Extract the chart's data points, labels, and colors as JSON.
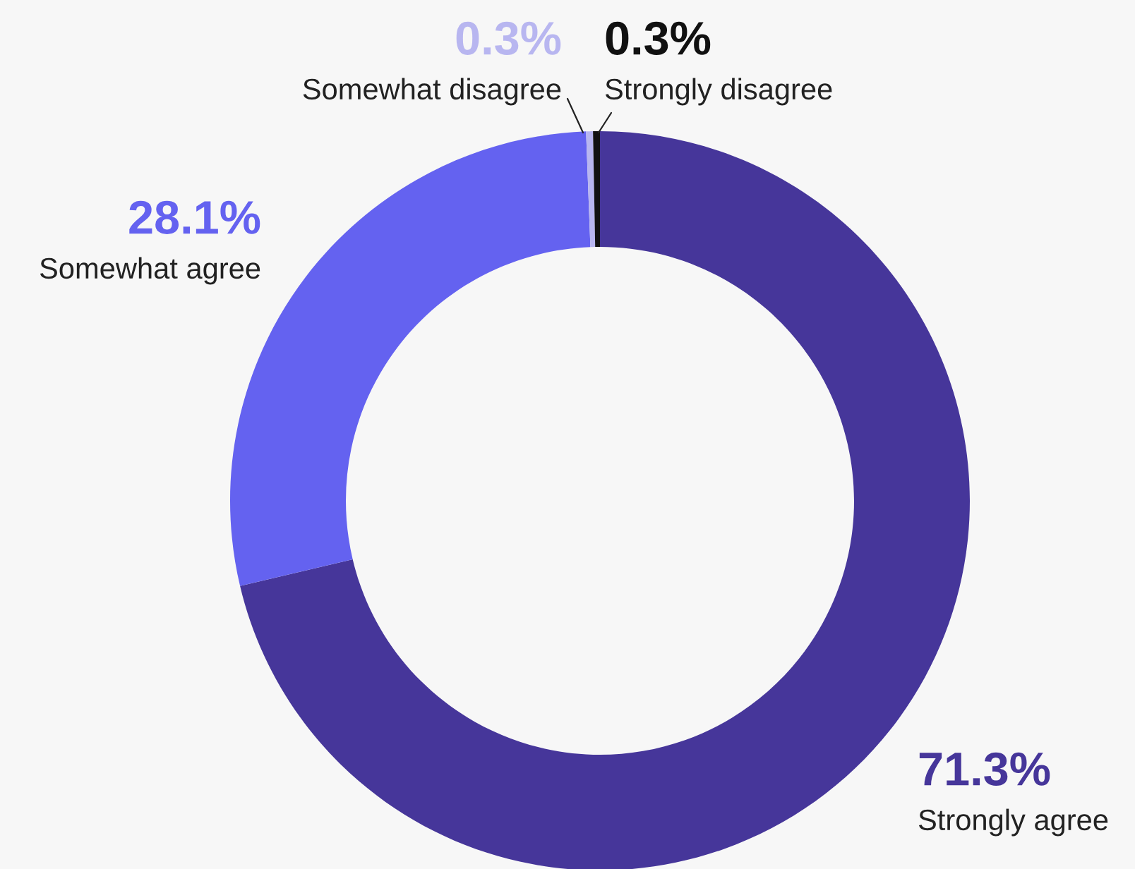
{
  "chart_data": {
    "type": "donut",
    "categories": [
      "Strongly agree",
      "Somewhat agree",
      "Somewhat disagree",
      "Strongly disagree"
    ],
    "values": [
      71.3,
      28.1,
      0.3,
      0.3
    ],
    "colors": [
      "#46369a",
      "#6462f0",
      "#b8b6f0",
      "#111111"
    ],
    "value_labels": [
      "71.3%",
      "28.1%",
      "0.3%",
      "0.3%"
    ],
    "legend": false
  }
}
